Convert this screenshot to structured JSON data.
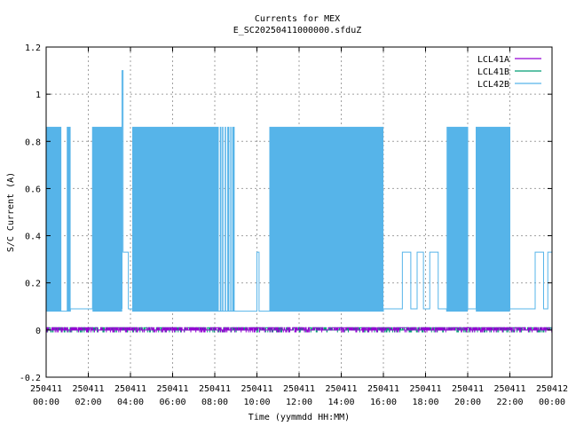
{
  "chart_data": {
    "type": "line",
    "title": "Currents for MEX",
    "subtitle": "E_SC20250411000000.sfduZ",
    "xlabel": "Time (yymmdd HH:MM)",
    "ylabel": "S/C Current (A)",
    "xlim": [
      0,
      24
    ],
    "ylim": [
      -0.2,
      1.2
    ],
    "yticks": [
      {
        "value": -0.2,
        "label": "-0.2"
      },
      {
        "value": 0,
        "label": "0"
      },
      {
        "value": 0.2,
        "label": "0.2"
      },
      {
        "value": 0.4,
        "label": "0.4"
      },
      {
        "value": 0.6,
        "label": "0.6"
      },
      {
        "value": 0.8,
        "label": "0.8"
      },
      {
        "value": 1.0,
        "label": "1"
      },
      {
        "value": 1.2,
        "label": "1.2"
      }
    ],
    "xticks": [
      {
        "value": 0,
        "date": "250411",
        "time": "00:00"
      },
      {
        "value": 2,
        "date": "250411",
        "time": "02:00"
      },
      {
        "value": 4,
        "date": "250411",
        "time": "04:00"
      },
      {
        "value": 6,
        "date": "250411",
        "time": "06:00"
      },
      {
        "value": 8,
        "date": "250411",
        "time": "08:00"
      },
      {
        "value": 10,
        "date": "250411",
        "time": "10:00"
      },
      {
        "value": 12,
        "date": "250411",
        "time": "12:00"
      },
      {
        "value": 14,
        "date": "250411",
        "time": "14:00"
      },
      {
        "value": 16,
        "date": "250411",
        "time": "16:00"
      },
      {
        "value": 18,
        "date": "250411",
        "time": "18:00"
      },
      {
        "value": 20,
        "date": "250411",
        "time": "20:00"
      },
      {
        "value": 22,
        "date": "250411",
        "time": "22:00"
      },
      {
        "value": 24,
        "date": "250412",
        "time": "00:00"
      }
    ],
    "grid": true,
    "legend_position": "top-right",
    "series": [
      {
        "name": "LCL41A",
        "color": "#9400d3",
        "levels": [
          0.0,
          0.01
        ]
      },
      {
        "name": "LCL41B",
        "color": "#009e73",
        "levels": [
          0.0,
          0.01
        ]
      },
      {
        "name": "LCL42B",
        "color": "#56b4e9",
        "segments": [
          {
            "x": [
              0.0,
              0.7
            ],
            "pattern": "switching",
            "low": 0.08,
            "high": 0.86
          },
          {
            "x": [
              0.7,
              1.0
            ],
            "pattern": "constant",
            "value": 0.08
          },
          {
            "x": [
              1.0,
              1.15
            ],
            "pattern": "switching",
            "low": 0.08,
            "high": 0.86
          },
          {
            "x": [
              1.15,
              2.2
            ],
            "pattern": "constant",
            "value": 0.09
          },
          {
            "x": [
              2.2,
              3.6
            ],
            "pattern": "switching",
            "low": 0.08,
            "high": 0.86
          },
          {
            "x": [
              3.6,
              3.65
            ],
            "pattern": "spike",
            "value": 1.1
          },
          {
            "x": [
              3.65,
              3.9
            ],
            "pattern": "constant",
            "value": 0.33
          },
          {
            "x": [
              3.9,
              4.1
            ],
            "pattern": "constant",
            "value": 0.09
          },
          {
            "x": [
              4.1,
              8.1
            ],
            "pattern": "switching",
            "low": 0.08,
            "high": 0.86
          },
          {
            "x": [
              8.1,
              9.0
            ],
            "pattern": "sparse",
            "low": 0.08,
            "high": 0.86
          },
          {
            "x": [
              9.0,
              10.0
            ],
            "pattern": "constant",
            "value": 0.08
          },
          {
            "x": [
              10.0,
              10.1
            ],
            "pattern": "constant",
            "value": 0.33
          },
          {
            "x": [
              10.1,
              10.6
            ],
            "pattern": "constant",
            "value": 0.08
          },
          {
            "x": [
              10.6,
              16.0
            ],
            "pattern": "switching",
            "low": 0.08,
            "high": 0.86
          },
          {
            "x": [
              16.0,
              16.9
            ],
            "pattern": "constant",
            "value": 0.09
          },
          {
            "x": [
              16.9,
              17.3
            ],
            "pattern": "constant",
            "value": 0.33
          },
          {
            "x": [
              17.3,
              17.6
            ],
            "pattern": "constant",
            "value": 0.09
          },
          {
            "x": [
              17.6,
              17.9
            ],
            "pattern": "constant",
            "value": 0.33
          },
          {
            "x": [
              17.9,
              18.2
            ],
            "pattern": "constant",
            "value": 0.09
          },
          {
            "x": [
              18.2,
              18.6
            ],
            "pattern": "constant",
            "value": 0.33
          },
          {
            "x": [
              18.6,
              19.0
            ],
            "pattern": "constant",
            "value": 0.09
          },
          {
            "x": [
              19.0,
              20.0
            ],
            "pattern": "switching",
            "low": 0.08,
            "high": 0.86
          },
          {
            "x": [
              20.0,
              20.4
            ],
            "pattern": "constant",
            "value": 0.09
          },
          {
            "x": [
              20.4,
              22.0
            ],
            "pattern": "switching",
            "low": 0.08,
            "high": 0.86
          },
          {
            "x": [
              22.0,
              23.2
            ],
            "pattern": "constant",
            "value": 0.09
          },
          {
            "x": [
              23.2,
              23.6
            ],
            "pattern": "constant",
            "value": 0.33
          },
          {
            "x": [
              23.6,
              23.8
            ],
            "pattern": "constant",
            "value": 0.09
          },
          {
            "x": [
              23.8,
              24.0
            ],
            "pattern": "constant",
            "value": 0.33
          }
        ]
      }
    ]
  }
}
